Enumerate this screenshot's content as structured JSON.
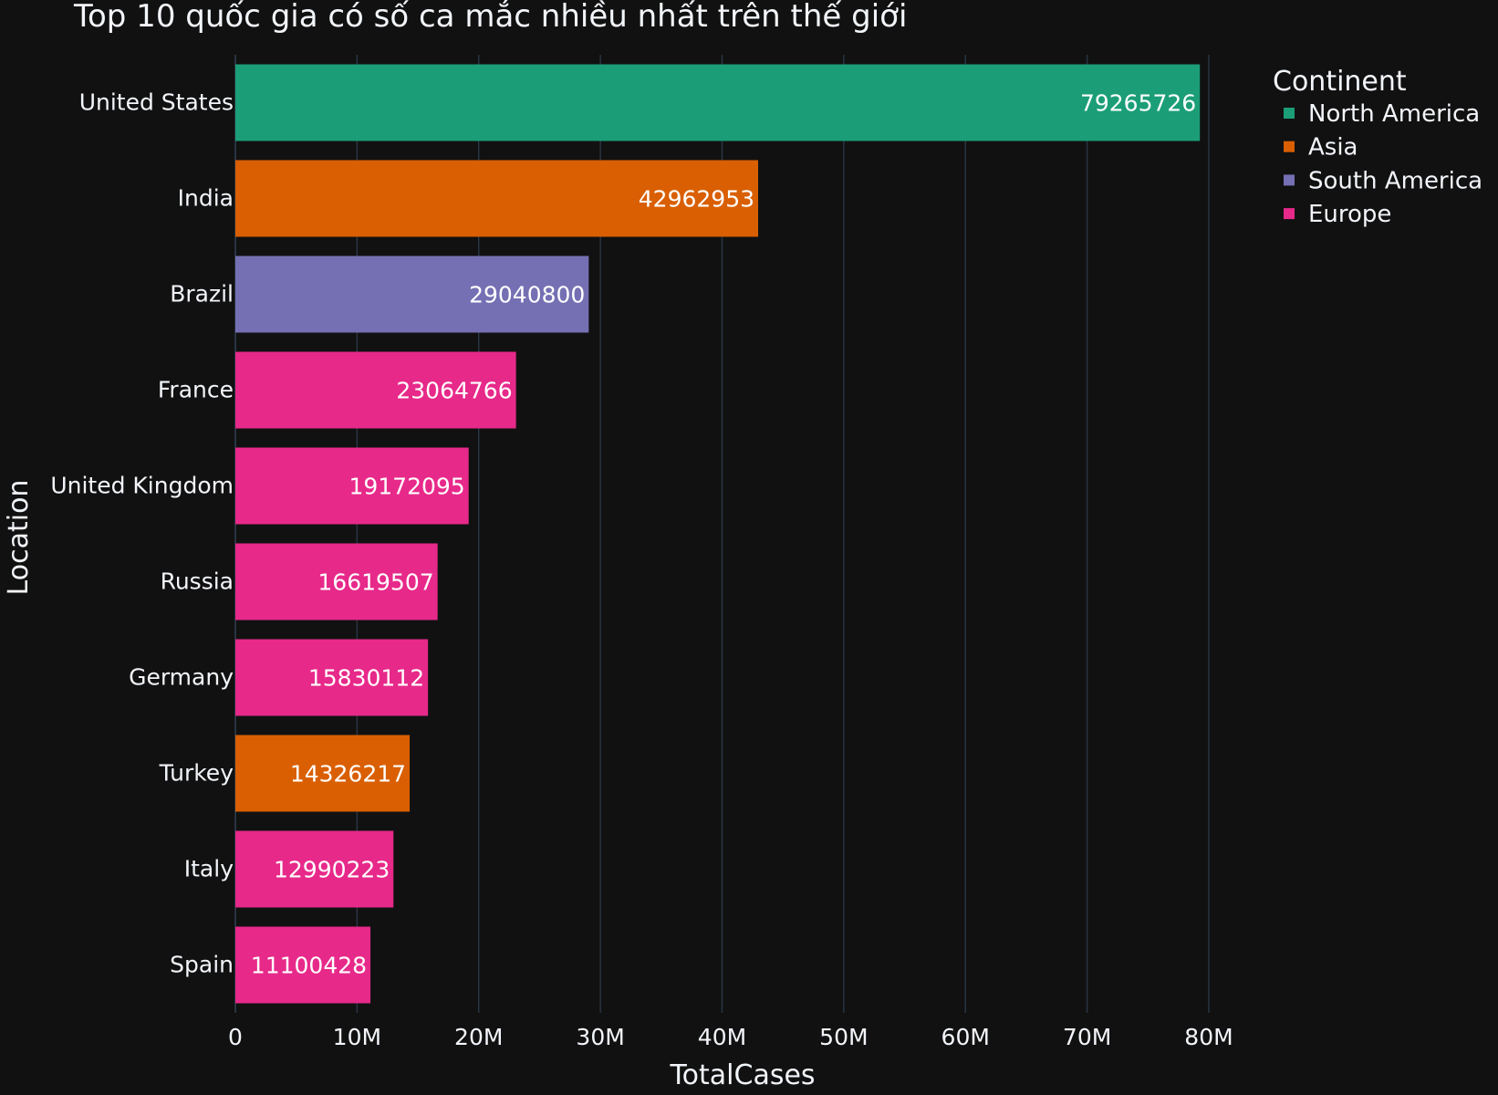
{
  "chart_data": {
    "type": "bar",
    "orientation": "horizontal",
    "title": "Top 10 quốc gia có số ca mắc nhiều nhất trên thế giới",
    "xlabel": "TotalCases",
    "ylabel": "Location",
    "xlim": [
      0,
      80000000
    ],
    "x_ticks": [
      {
        "value": 0,
        "label": "0"
      },
      {
        "value": 10000000,
        "label": "10M"
      },
      {
        "value": 20000000,
        "label": "20M"
      },
      {
        "value": 30000000,
        "label": "30M"
      },
      {
        "value": 40000000,
        "label": "40M"
      },
      {
        "value": 50000000,
        "label": "50M"
      },
      {
        "value": 60000000,
        "label": "60M"
      },
      {
        "value": 70000000,
        "label": "70M"
      },
      {
        "value": 80000000,
        "label": "80M"
      }
    ],
    "grid": true,
    "legend": {
      "title": "Continent",
      "placement": "top-right",
      "entries": [
        {
          "name": "North America",
          "color": "#1b9e77"
        },
        {
          "name": "Asia",
          "color": "#d95f02"
        },
        {
          "name": "South America",
          "color": "#7570b3"
        },
        {
          "name": "Europe",
          "color": "#e7298a"
        }
      ]
    },
    "bars": [
      {
        "category": "United States",
        "value": 79265726,
        "label": "79265726",
        "continent": "North America"
      },
      {
        "category": "India",
        "value": 42962953,
        "label": "42962953",
        "continent": "Asia"
      },
      {
        "category": "Brazil",
        "value": 29040800,
        "label": "29040800",
        "continent": "South America"
      },
      {
        "category": "France",
        "value": 23064766,
        "label": "23064766",
        "continent": "Europe"
      },
      {
        "category": "United Kingdom",
        "value": 19172095,
        "label": "19172095",
        "continent": "Europe"
      },
      {
        "category": "Russia",
        "value": 16619507,
        "label": "16619507",
        "continent": "Europe"
      },
      {
        "category": "Germany",
        "value": 15830112,
        "label": "15830112",
        "continent": "Europe"
      },
      {
        "category": "Turkey",
        "value": 14326217,
        "label": "14326217",
        "continent": "Asia"
      },
      {
        "category": "Italy",
        "value": 12990223,
        "label": "12990223",
        "continent": "Europe"
      },
      {
        "category": "Spain",
        "value": 11100428,
        "label": "11100428",
        "continent": "Europe"
      }
    ]
  },
  "colors": {
    "background": "#111111",
    "grid": "#283442",
    "text": "#f2f5fa"
  }
}
